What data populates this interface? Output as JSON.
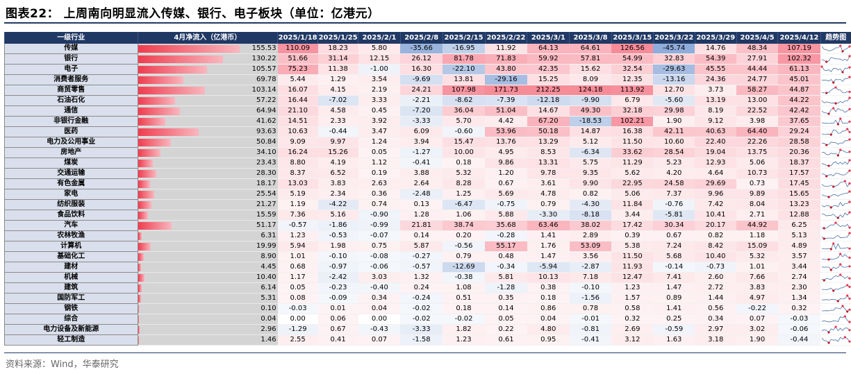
{
  "figure": {
    "title": "图表22：   上周南向明显流入传媒、银行、电子板块（单位：亿港元）",
    "source": "资料来源：Wind，华泰研究"
  },
  "colors": {
    "header_bg": "#203864",
    "pos": "#f0324a",
    "neg": "#4a78c2",
    "bar": "#ef3d4f",
    "industry_bg": "#d9dfec"
  },
  "chart_data": {
    "type": "table",
    "columns": [
      "一级行业",
      "4月净流入（亿港币）",
      "2025/1/18",
      "2025/1/25",
      "2025/2/1",
      "2025/2/8",
      "2025/2/15",
      "2025/2/22",
      "2025/3/1",
      "2025/3/8",
      "2025/3/15",
      "2025/3/22",
      "2025/3/29",
      "2025/4/5",
      "2025/4/12",
      "趋势图"
    ],
    "rows": [
      {
        "industry": "传媒",
        "april": "155.53",
        "weekly": [
          "110.09",
          "18.23",
          "5.80",
          "-35.66",
          "-16.95",
          "11.92",
          "64.13",
          "64.61",
          "126.56",
          "-45.74",
          "14.76",
          "48.34",
          "107.19"
        ]
      },
      {
        "industry": "银行",
        "april": "130.22",
        "weekly": [
          "51.66",
          "31.14",
          "12.15",
          "26.12",
          "81.78",
          "71.83",
          "59.92",
          "57.81",
          "54.99",
          "32.83",
          "54.39",
          "27.91",
          "102.32"
        ]
      },
      {
        "industry": "电子",
        "april": "105.57",
        "weekly": [
          "75.23",
          "11.38",
          "-1.00",
          "16.30",
          "-22.10",
          "43.80",
          "42.35",
          "15.62",
          "32.54",
          "-29.63",
          "45.55",
          "44.44",
          "61.13"
        ]
      },
      {
        "industry": "消费者服务",
        "april": "69.78",
        "weekly": [
          "5.44",
          "1.29",
          "3.54",
          "-9.69",
          "13.81",
          "-29.16",
          "15.25",
          "8.09",
          "12.35",
          "-13.16",
          "24.36",
          "24.77",
          "45.01"
        ]
      },
      {
        "industry": "商贸零售",
        "april": "103.14",
        "weekly": [
          "16.07",
          "4.15",
          "2.19",
          "24.21",
          "107.98",
          "171.73",
          "212.25",
          "124.18",
          "113.92",
          "12.70",
          "3.73",
          "58.27",
          "44.87"
        ]
      },
      {
        "industry": "石油石化",
        "april": "57.22",
        "weekly": [
          "16.44",
          "-7.02",
          "3.33",
          "-2.21",
          "-8.62",
          "-7.39",
          "-12.18",
          "-9.90",
          "6.79",
          "-5.60",
          "13.19",
          "13.00",
          "44.22"
        ]
      },
      {
        "industry": "通信",
        "april": "64.94",
        "weekly": [
          "21.10",
          "4.58",
          "0.45",
          "-7.20",
          "36.04",
          "51.04",
          "14.67",
          "49.30",
          "32.18",
          "29.98",
          "8.19",
          "22.52",
          "42.42"
        ]
      },
      {
        "industry": "非银行金融",
        "april": "41.62",
        "weekly": [
          "14.51",
          "2.33",
          "3.92",
          "-3.33",
          "5.70",
          "4.42",
          "67.20",
          "-18.53",
          "102.21",
          "1.90",
          "9.12",
          "3.98",
          "37.65"
        ]
      },
      {
        "industry": "医药",
        "april": "93.63",
        "weekly": [
          "10.63",
          "-0.44",
          "3.47",
          "6.09",
          "-0.60",
          "53.96",
          "50.18",
          "14.87",
          "16.38",
          "42.11",
          "40.63",
          "64.40",
          "29.24"
        ]
      },
      {
        "industry": "电力及公用事业",
        "april": "50.84",
        "weekly": [
          "9.09",
          "9.97",
          "1.24",
          "3.94",
          "15.47",
          "13.76",
          "13.29",
          "5.12",
          "11.50",
          "10.60",
          "22.40",
          "22.26",
          "28.58"
        ]
      },
      {
        "industry": "房地产",
        "april": "34.10",
        "weekly": [
          "16.24",
          "15.26",
          "0.05",
          "-1.27",
          "10.00",
          "4.95",
          "8.53",
          "-6.34",
          "33.62",
          "28.54",
          "19.04",
          "13.75",
          "20.36"
        ]
      },
      {
        "industry": "煤炭",
        "april": "23.43",
        "weekly": [
          "8.80",
          "4.19",
          "1.12",
          "-0.41",
          "0.18",
          "9.86",
          "13.31",
          "5.75",
          "11.29",
          "5.23",
          "12.93",
          "5.06",
          "18.37"
        ]
      },
      {
        "industry": "交通运输",
        "april": "28.30",
        "weekly": [
          "8.37",
          "6.52",
          "0.19",
          "3.88",
          "5.32",
          "1.20",
          "9.78",
          "9.35",
          "5.62",
          "4.20",
          "4.64",
          "10.73",
          "17.57"
        ]
      },
      {
        "industry": "有色金属",
        "april": "18.17",
        "weekly": [
          "13.03",
          "3.83",
          "2.63",
          "2.64",
          "8.28",
          "0.67",
          "3.61",
          "9.90",
          "22.95",
          "24.58",
          "29.69",
          "0.73",
          "17.45"
        ]
      },
      {
        "industry": "家电",
        "april": "25.54",
        "weekly": [
          "5.19",
          "2.34",
          "0.36",
          "-2.48",
          "1.25",
          "5.69",
          "4.78",
          "0.82",
          "5.06",
          "7.37",
          "9.96",
          "9.89",
          "15.65"
        ]
      },
      {
        "industry": "纺织服装",
        "april": "21.27",
        "weekly": [
          "1.19",
          "-4.22",
          "0.74",
          "0.13",
          "-6.47",
          "-0.75",
          "0.79",
          "-4.30",
          "11.84",
          "-0.76",
          "7.42",
          "8.04",
          "13.23"
        ]
      },
      {
        "industry": "食品饮料",
        "april": "15.59",
        "weekly": [
          "7.36",
          "5.16",
          "-0.90",
          "1.28",
          "1.06",
          "5.88",
          "-3.30",
          "-8.18",
          "3.44",
          "-5.81",
          "10.41",
          "2.71",
          "12.88"
        ]
      },
      {
        "industry": "汽车",
        "april": "51.17",
        "weekly": [
          "-0.57",
          "-1.86",
          "-0.99",
          "21.81",
          "38.74",
          "35.68",
          "63.46",
          "38.02",
          "17.42",
          "30.34",
          "20.17",
          "44.92",
          "6.25"
        ]
      },
      {
        "industry": "农林牧渔",
        "april": "6.31",
        "weekly": [
          "1.23",
          "-0.53",
          "-0.07",
          "0.14",
          "0.20",
          "-0.28",
          "1.41",
          "2.89",
          "0.39",
          "0.67",
          "0.82",
          "1.18",
          "5.13"
        ]
      },
      {
        "industry": "计算机",
        "april": "19.99",
        "weekly": [
          "5.94",
          "1.98",
          "0.75",
          "5.87",
          "-0.56",
          "55.17",
          "1.76",
          "53.09",
          "5.38",
          "7.24",
          "8.42",
          "15.09",
          "4.89"
        ]
      },
      {
        "industry": "基础化工",
        "april": "8.90",
        "weekly": [
          "1.01",
          "-0.10",
          "-0.08",
          "-0.27",
          "0.79",
          "0.48",
          "1.47",
          "3.56",
          "11.50",
          "5.68",
          "10.40",
          "5.32",
          "3.57"
        ]
      },
      {
        "industry": "建材",
        "april": "4.45",
        "weekly": [
          "0.68",
          "-0.97",
          "-0.06",
          "-0.57",
          "-12.69",
          "-0.34",
          "-5.94",
          "-2.87",
          "11.93",
          "-0.14",
          "-0.73",
          "1.01",
          "3.44"
        ]
      },
      {
        "industry": "机械",
        "april": "10.40",
        "weekly": [
          "1.17",
          "-2.42",
          "3.03",
          "1.32",
          "-0.38",
          "5.81",
          "10.13",
          "7.18",
          "12.47",
          "7.41",
          "2.60",
          "7.66",
          "2.74"
        ]
      },
      {
        "industry": "建筑",
        "april": "6.14",
        "weekly": [
          "0.05",
          "-0.23",
          "-0.40",
          "0.24",
          "1.08",
          "-1.28",
          "0.38",
          "-0.10",
          "1.23",
          "1.47",
          "2.72",
          "3.83",
          "2.30"
        ]
      },
      {
        "industry": "国防军工",
        "april": "5.31",
        "weekly": [
          "0.08",
          "-0.09",
          "0.34",
          "-0.24",
          "0.51",
          "0.35",
          "0.18",
          "-1.56",
          "1.57",
          "0.89",
          "1.44",
          "4.97",
          "1.34"
        ]
      },
      {
        "industry": "钢铁",
        "april": "0.10",
        "weekly": [
          "-0.03",
          "0.01",
          "0.04",
          "-0.02",
          "0.18",
          "0.14",
          "0.86",
          "0.78",
          "0.58",
          "1.41",
          "0.56",
          "-0.22",
          "0.32"
        ]
      },
      {
        "industry": "综合",
        "april": "0.04",
        "weekly": [
          "0.00",
          "0.06",
          "0.00",
          "-0.02",
          "-0.02",
          "0.05",
          "0.04",
          "-0.01",
          "0.32",
          "0.25",
          "0.34",
          "0.07",
          "-0.03"
        ]
      },
      {
        "industry": "电力设备及新能源",
        "april": "2.96",
        "weekly": [
          "-1.29",
          "0.67",
          "-0.43",
          "-3.33",
          "1.82",
          "0.22",
          "4.80",
          "-0.81",
          "2.69",
          "-0.59",
          "2.97",
          "3.02",
          "-0.06"
        ]
      },
      {
        "industry": "轻工制造",
        "april": "1.46",
        "weekly": [
          "2.55",
          "0.41",
          "0.07",
          "-1.58",
          "1.23",
          "0.61",
          "0.95",
          "-0.41",
          "3.12",
          "1.63",
          "3.18",
          "1.90",
          "-0.44"
        ]
      }
    ]
  }
}
